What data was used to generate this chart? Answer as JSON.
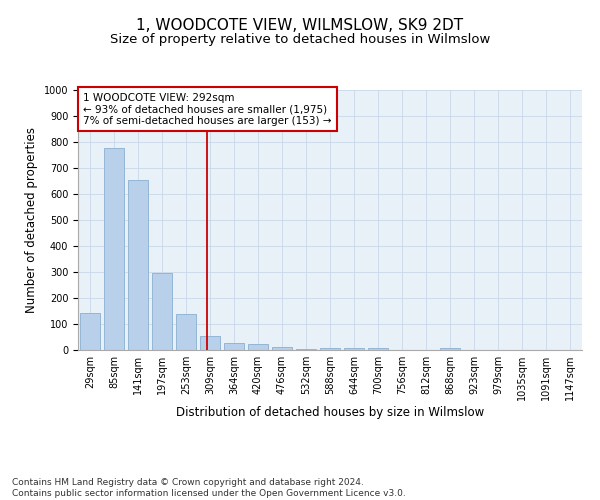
{
  "title": "1, WOODCOTE VIEW, WILMSLOW, SK9 2DT",
  "subtitle": "Size of property relative to detached houses in Wilmslow",
  "xlabel": "Distribution of detached houses by size in Wilmslow",
  "ylabel": "Number of detached properties",
  "footer_line1": "Contains HM Land Registry data © Crown copyright and database right 2024.",
  "footer_line2": "Contains public sector information licensed under the Open Government Licence v3.0.",
  "bar_labels": [
    "29sqm",
    "85sqm",
    "141sqm",
    "197sqm",
    "253sqm",
    "309sqm",
    "364sqm",
    "420sqm",
    "476sqm",
    "532sqm",
    "588sqm",
    "644sqm",
    "700sqm",
    "756sqm",
    "812sqm",
    "868sqm",
    "923sqm",
    "979sqm",
    "1035sqm",
    "1091sqm",
    "1147sqm"
  ],
  "bar_values": [
    142,
    778,
    655,
    298,
    138,
    55,
    28,
    22,
    13,
    5,
    8,
    6,
    6,
    0,
    0,
    8,
    0,
    0,
    0,
    0,
    0
  ],
  "bar_color": "#b8d0ea",
  "bar_edge_color": "#8ab0d0",
  "vline_x": 4.88,
  "vline_color": "#cc0000",
  "annotation_text": "1 WOODCOTE VIEW: 292sqm\n← 93% of detached houses are smaller (1,975)\n7% of semi-detached houses are larger (153) →",
  "annotation_box_color": "#cc0000",
  "ylim": [
    0,
    1000
  ],
  "yticks": [
    0,
    100,
    200,
    300,
    400,
    500,
    600,
    700,
    800,
    900,
    1000
  ],
  "grid_color": "#c8d8e8",
  "background_color": "#e8f0f8",
  "title_fontsize": 11,
  "subtitle_fontsize": 9.5,
  "tick_fontsize": 7,
  "label_fontsize": 8.5,
  "footer_fontsize": 6.5,
  "annotation_fontsize": 7.5
}
